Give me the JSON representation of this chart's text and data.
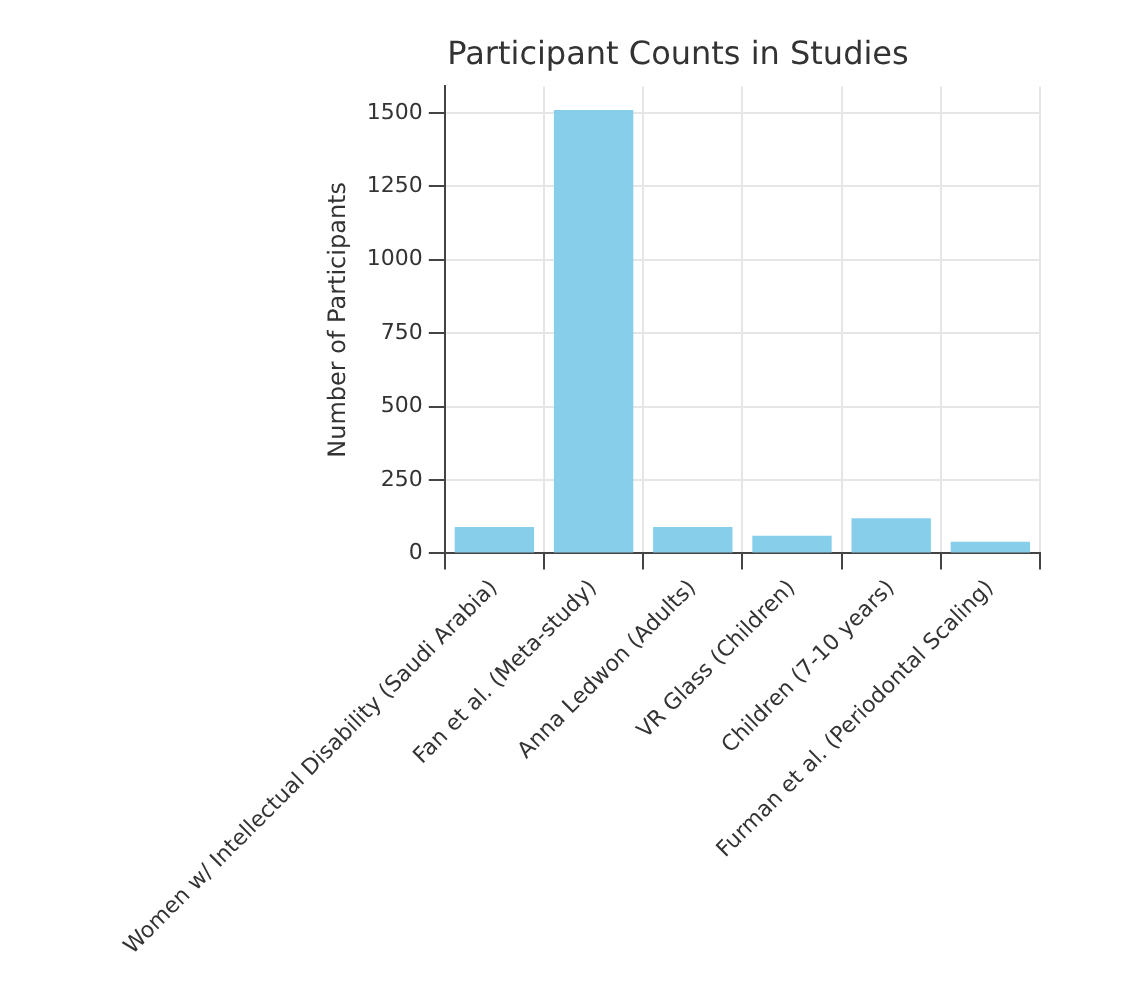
{
  "chart_data": {
    "type": "bar",
    "title": "Participant Counts in Studies",
    "ylabel": "Number of Participants",
    "categories": [
      "Women w/ Intellectual Disability (Saudi Arabia)",
      "Fan et al. (Meta-study)",
      "Anna Ledwon (Adults)",
      "VR Glass (Children)",
      "Children (7-10 years)",
      "Furman et al. (Periodontal Scaling)"
    ],
    "values": [
      90,
      1510,
      90,
      60,
      120,
      40
    ],
    "color": "#87ceeb",
    "ylim": [
      0,
      1590
    ],
    "yticks": [
      0,
      250,
      500,
      750,
      1000,
      1250,
      1500
    ],
    "grid": true
  }
}
